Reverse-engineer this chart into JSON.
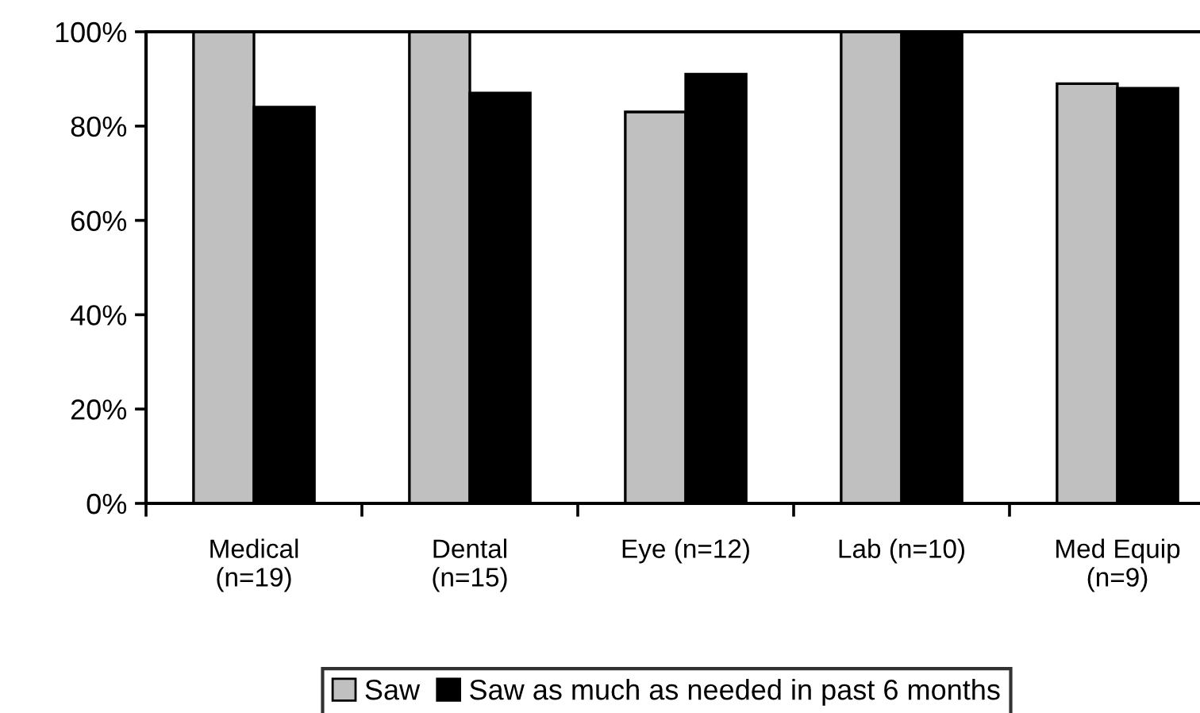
{
  "chart_data": {
    "type": "bar",
    "categories": [
      "Medical\n(n=19)",
      "Dental\n(n=15)",
      "Eye (n=12)",
      "Lab (n=10)",
      "Med Equip\n(n=9)"
    ],
    "series": [
      {
        "name": "Saw",
        "color": "#c0c0c0",
        "values": [
          100,
          100,
          83,
          100,
          89
        ]
      },
      {
        "name": "Saw as much as needed in past 6 months",
        "color": "#000000",
        "values": [
          84,
          87,
          91,
          100,
          88
        ]
      }
    ],
    "ylim": [
      0,
      100
    ],
    "yticks": [
      {
        "value": 0,
        "label": "0%"
      },
      {
        "value": 20,
        "label": "20%"
      },
      {
        "value": 40,
        "label": "40%"
      },
      {
        "value": 60,
        "label": "60%"
      },
      {
        "value": 80,
        "label": "80%"
      },
      {
        "value": 100,
        "label": "100%"
      }
    ],
    "grid": false,
    "legend": "bottom"
  }
}
